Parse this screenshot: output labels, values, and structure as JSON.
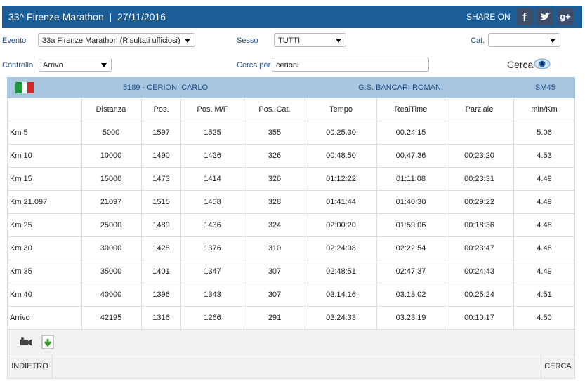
{
  "header": {
    "title": "33^ Firenze Marathon  |  27/11/2016",
    "share_label": "SHARE ON",
    "share_icons": [
      "f",
      "g+"
    ]
  },
  "form": {
    "evento_label": "Evento",
    "evento_value": "33a Firenze Marathon (Risultati ufficiosi)",
    "sesso_label": "Sesso",
    "sesso_value": "TUTTI",
    "cat_label": "Cat.",
    "controllo_label": "Controllo",
    "controllo_value": "Arrivo",
    "cerca_per_label": "Cerca per",
    "cerca_per_value": "cerioni",
    "cerca_button": "Cerca"
  },
  "athlete": {
    "bib_name": "5189 - CERIONI CARLO",
    "team": "G.S. BANCARI ROMANI",
    "category": "SM45"
  },
  "table": {
    "columns": [
      null,
      "Distanza",
      "Pos.",
      "Pos. M/F",
      "Pos. Cat.",
      "Tempo",
      "RealTime",
      "Parziale",
      "min/Km"
    ],
    "rows": [
      [
        "Km 5",
        "5000",
        "1597",
        "1525",
        "355",
        "00:25:30",
        "00:24:15",
        null,
        "5.06"
      ],
      [
        "Km 10",
        "10000",
        "1490",
        "1426",
        "326",
        "00:48:50",
        "00:47:36",
        "00:23:20",
        "4.53"
      ],
      [
        "Km 15",
        "15000",
        "1473",
        "1414",
        "326",
        "01:12:22",
        "01:11:08",
        "00:23:31",
        "4.49"
      ],
      [
        "Km 21.097",
        "21097",
        "1515",
        "1458",
        "328",
        "01:41:44",
        "01:40:30",
        "00:29:22",
        "4.49"
      ],
      [
        "Km 25",
        "25000",
        "1489",
        "1436",
        "324",
        "02:00:20",
        "01:59:06",
        "00:18:36",
        "4.48"
      ],
      [
        "Km 30",
        "30000",
        "1428",
        "1376",
        "310",
        "02:24:08",
        "02:22:54",
        "00:23:47",
        "4.48"
      ],
      [
        "Km 35",
        "35000",
        "1401",
        "1347",
        "307",
        "02:48:51",
        "02:47:37",
        "00:24:43",
        "4.49"
      ],
      [
        "Km 40",
        "40000",
        "1396",
        "1343",
        "307",
        "03:14:16",
        "03:13:02",
        "00:25:24",
        "4.51"
      ],
      [
        "Arrivo",
        "42195",
        "1316",
        "1266",
        "291",
        "03:24:33",
        "03:23:19",
        "00:10:17",
        "4.50"
      ]
    ]
  },
  "footer": {
    "back": "INDIETRO",
    "search": "CERCA"
  }
}
